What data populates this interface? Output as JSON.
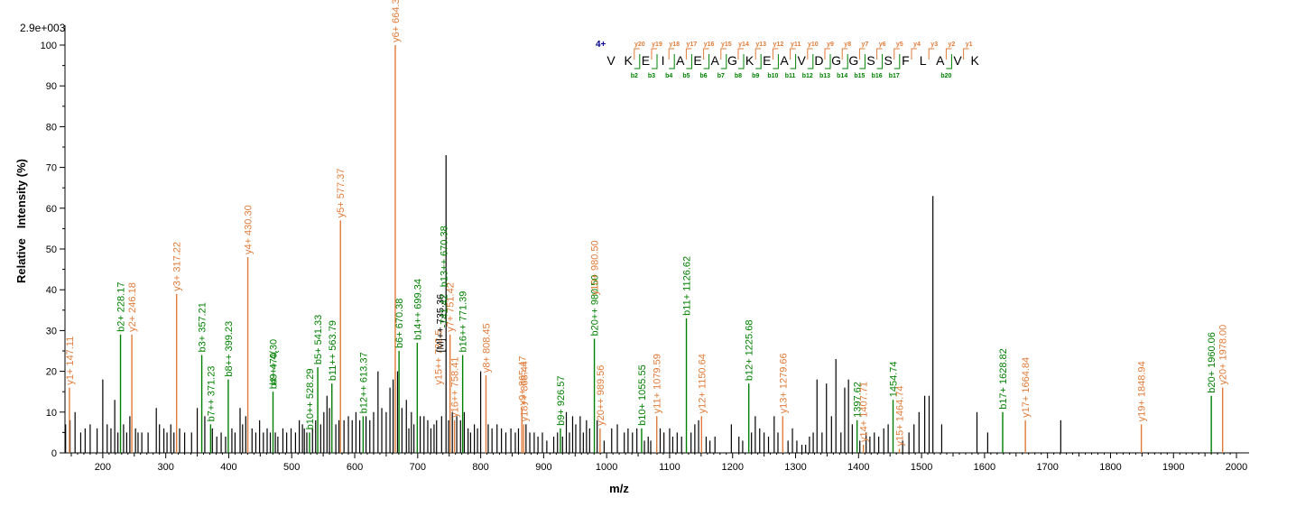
{
  "chart_data": {
    "type": "bar",
    "title": "",
    "xlabel": "m/z",
    "ylabel": "Relative   Intensity (%)",
    "scale_label": "2.9e+003",
    "xlim": [
      140,
      2020
    ],
    "ylim": [
      0,
      100
    ],
    "x_ticks": [
      "200",
      "300",
      "400",
      "500",
      "600",
      "700",
      "800",
      "900",
      "1000",
      "1100",
      "1200",
      "1300",
      "1400",
      "1500",
      "1600",
      "1700",
      "1800",
      "1900",
      "2000"
    ],
    "y_ticks": [
      "0",
      "10",
      "20",
      "30",
      "40",
      "50",
      "60",
      "70",
      "80",
      "90",
      "100"
    ],
    "colors": {
      "b_ion": "#008000",
      "y_ion": "#e07b39",
      "other": "#000000"
    },
    "sequence": {
      "charge": "4+",
      "residues": [
        "V",
        "K",
        "E",
        "I",
        "A",
        "E",
        "A",
        "G",
        "K",
        "E",
        "A",
        "V",
        "D",
        "G",
        "G",
        "S",
        "S",
        "F",
        "L",
        "A",
        "V",
        "K"
      ],
      "y_labels": [
        "y20",
        "y19",
        "y18",
        "y17",
        "y16",
        "y15",
        "y14",
        "y13",
        "y12",
        "y11",
        "y10",
        "y9",
        "y8",
        "y7",
        "y6",
        "y5",
        "y4",
        "y3",
        "y2",
        "y1"
      ],
      "b_labels": [
        "b2",
        "b3",
        "b4",
        "b5",
        "b6",
        "b7",
        "b8",
        "b9",
        "b10",
        "b11",
        "b12",
        "b13",
        "b14",
        "b15",
        "b16",
        "b17",
        "b20"
      ]
    },
    "labeled_peaks": [
      {
        "mz": 147.11,
        "intensity": 16,
        "ion": "y",
        "label": "y1+ 147.11"
      },
      {
        "mz": 228.17,
        "intensity": 29,
        "ion": "b",
        "label": "b2+ 228.17"
      },
      {
        "mz": 246.18,
        "intensity": 29,
        "ion": "y",
        "label": "y2+ 246.18"
      },
      {
        "mz": 317.22,
        "intensity": 39,
        "ion": "y",
        "label": "y3+ 317.22"
      },
      {
        "mz": 357.21,
        "intensity": 24,
        "ion": "b",
        "label": "b3+ 357.21"
      },
      {
        "mz": 371.23,
        "intensity": 7,
        "ion": "b",
        "label": "b7++ 371.23"
      },
      {
        "mz": 399.23,
        "intensity": 18,
        "ion": "b",
        "label": "b8++ 399.23"
      },
      {
        "mz": 430.3,
        "intensity": 48,
        "ion": "y",
        "label": "y4+ 430.30"
      },
      {
        "mz": 470.3,
        "intensity": 15,
        "ion": "b",
        "label": "b4+ 470.30"
      },
      {
        "mz": 528.29,
        "intensity": 5,
        "ion": "b",
        "label": "b10++ 528.29"
      },
      {
        "mz": 541.33,
        "intensity": 21,
        "ion": "b",
        "label": "b5+ 541.33"
      },
      {
        "mz": 563.79,
        "intensity": 17,
        "ion": "b",
        "label": "b11++ 563.79"
      },
      {
        "mz": 577.37,
        "intensity": 57,
        "ion": "y",
        "label": "y5+ 577.37"
      },
      {
        "mz": 613.37,
        "intensity": 9,
        "ion": "b",
        "label": "b12++ 613.37"
      },
      {
        "mz": 664.39,
        "intensity": 100,
        "ion": "y",
        "label": "y6+ 664.39"
      },
      {
        "mz": 670.38,
        "intensity": 25,
        "ion": "b",
        "label": "b6+ 670.38"
      },
      {
        "mz": 699.34,
        "intensity": 27,
        "ion": "b",
        "label": "b14++ 699.34"
      },
      {
        "mz": 751.42,
        "intensity": 29,
        "ion": "y",
        "label": "y7+ 751.42"
      },
      {
        "mz": 758.41,
        "intensity": 8,
        "ion": "y",
        "label": "y16++ 758.41"
      },
      {
        "mz": 771.39,
        "intensity": 24,
        "ion": "b",
        "label": "b16++ 771.39"
      },
      {
        "mz": 808.45,
        "intensity": 19,
        "ion": "y",
        "label": "y8+ 808.45"
      },
      {
        "mz": 865.47,
        "intensity": 11,
        "ion": "y",
        "label": "y9+ 865.47"
      },
      {
        "mz": 868.44,
        "intensity": 7,
        "ion": "y",
        "label": "y18++ 868.44"
      },
      {
        "mz": 926.57,
        "intensity": 6,
        "ion": "b",
        "label": "b9+ 926.57"
      },
      {
        "mz": 980.5,
        "intensity": 28,
        "ion": "b",
        "label": "b20++ 980.50"
      },
      {
        "mz": 989.56,
        "intensity": 6,
        "ion": "y",
        "label": "y20++ 989.56"
      },
      {
        "mz": 1055.55,
        "intensity": 6,
        "ion": "b",
        "label": "b10+ 1055.55"
      },
      {
        "mz": 1079.59,
        "intensity": 9,
        "ion": "y",
        "label": "y11+ 1079.59"
      },
      {
        "mz": 1126.62,
        "intensity": 33,
        "ion": "b",
        "label": "b11+ 1126.62"
      },
      {
        "mz": 1150.64,
        "intensity": 9,
        "ion": "y",
        "label": "y12+ 1150.64"
      },
      {
        "mz": 1225.68,
        "intensity": 17,
        "ion": "b",
        "label": "b12+ 1225.68"
      },
      {
        "mz": 1279.66,
        "intensity": 9,
        "ion": "y",
        "label": "y13+ 1279.66"
      },
      {
        "mz": 1397.62,
        "intensity": 8,
        "ion": "b",
        "label": "1397.62"
      },
      {
        "mz": 1407.71,
        "intensity": 2,
        "ion": "y",
        "label": "y14+ 1407.71"
      },
      {
        "mz": 1454.74,
        "intensity": 13,
        "ion": "b",
        "label": "1454.74"
      },
      {
        "mz": 1464.74,
        "intensity": 1,
        "ion": "y",
        "label": "y15+ 1464.74"
      },
      {
        "mz": 1628.82,
        "intensity": 10,
        "ion": "b",
        "label": "b17+ 1628.82"
      },
      {
        "mz": 1664.84,
        "intensity": 8,
        "ion": "y",
        "label": "y17+ 1664.84"
      },
      {
        "mz": 1848.94,
        "intensity": 7,
        "ion": "y",
        "label": "y19+ 1848.94"
      },
      {
        "mz": 1960.06,
        "intensity": 14,
        "ion": "b",
        "label": "b20+ 1960.06"
      },
      {
        "mz": 1978.0,
        "intensity": 16,
        "ion": "y",
        "label": "y20+ 1978.00"
      }
    ],
    "partial_labels": [
      {
        "mz": 470.3,
        "intensity": 16,
        "ion": "b",
        "text": "b9++ 4("
      },
      {
        "mz": 732.5,
        "intensity": 16,
        "ion": "y",
        "text": "y15++ 732.5"
      },
      {
        "mz": 735.36,
        "intensity": 24,
        "ion": "other",
        "text": "[M]++ 735.36"
      },
      {
        "mz": 741.42,
        "intensity": 40,
        "ion": "b",
        "text": "b13++ 670.38"
      },
      {
        "mz": 741.42,
        "intensity": 30,
        "ion": "b",
        "text": "-741.42"
      },
      {
        "mz": 980.5,
        "intensity": 38,
        "ion": "y",
        "text": "y10+ 980.50"
      }
    ],
    "other_peaks": [
      [
        141,
        7
      ],
      [
        148,
        8
      ],
      [
        156,
        10
      ],
      [
        165,
        5
      ],
      [
        172,
        6
      ],
      [
        180,
        7
      ],
      [
        191,
        6
      ],
      [
        200,
        18
      ],
      [
        207,
        7
      ],
      [
        213,
        6
      ],
      [
        219,
        13
      ],
      [
        224,
        5
      ],
      [
        233,
        7
      ],
      [
        238,
        5
      ],
      [
        243,
        9
      ],
      [
        252,
        6
      ],
      [
        256,
        5
      ],
      [
        262,
        5
      ],
      [
        272,
        5
      ],
      [
        285,
        11
      ],
      [
        290,
        7
      ],
      [
        297,
        6
      ],
      [
        302,
        5
      ],
      [
        308,
        7
      ],
      [
        313,
        5
      ],
      [
        322,
        6
      ],
      [
        330,
        5
      ],
      [
        341,
        5
      ],
      [
        350,
        11
      ],
      [
        362,
        9
      ],
      [
        374,
        6
      ],
      [
        381,
        4
      ],
      [
        388,
        5
      ],
      [
        395,
        4
      ],
      [
        405,
        6
      ],
      [
        410,
        5
      ],
      [
        418,
        11
      ],
      [
        422,
        7
      ],
      [
        427,
        9
      ],
      [
        437,
        6
      ],
      [
        443,
        5
      ],
      [
        449,
        8
      ],
      [
        455,
        5
      ],
      [
        461,
        6
      ],
      [
        466,
        5
      ],
      [
        474,
        5
      ],
      [
        478,
        4
      ],
      [
        486,
        6
      ],
      [
        492,
        5
      ],
      [
        499,
        6
      ],
      [
        506,
        5
      ],
      [
        512,
        8
      ],
      [
        517,
        7
      ],
      [
        520,
        6
      ],
      [
        524,
        5
      ],
      [
        533,
        6
      ],
      [
        538,
        8
      ],
      [
        546,
        7
      ],
      [
        551,
        10
      ],
      [
        556,
        14
      ],
      [
        560,
        11
      ],
      [
        570,
        7
      ],
      [
        575,
        8
      ],
      [
        583,
        8
      ],
      [
        590,
        9
      ],
      [
        596,
        8
      ],
      [
        602,
        10
      ],
      [
        608,
        8
      ],
      [
        618,
        9
      ],
      [
        624,
        8
      ],
      [
        630,
        10
      ],
      [
        637,
        20
      ],
      [
        643,
        11
      ],
      [
        650,
        10
      ],
      [
        656,
        16
      ],
      [
        661,
        18
      ],
      [
        668,
        20
      ],
      [
        675,
        11
      ],
      [
        682,
        13
      ],
      [
        686,
        6
      ],
      [
        690,
        10
      ],
      [
        694,
        7
      ],
      [
        704,
        9
      ],
      [
        710,
        9
      ],
      [
        716,
        8
      ],
      [
        721,
        6
      ],
      [
        726,
        7
      ],
      [
        730,
        8
      ],
      [
        738,
        9
      ],
      [
        745,
        73
      ],
      [
        749,
        8
      ],
      [
        755,
        10
      ],
      [
        762,
        9
      ],
      [
        768,
        8
      ],
      [
        774,
        10
      ],
      [
        780,
        6
      ],
      [
        784,
        5
      ],
      [
        790,
        7
      ],
      [
        795,
        6
      ],
      [
        800,
        20
      ],
      [
        812,
        7
      ],
      [
        818,
        6
      ],
      [
        826,
        7
      ],
      [
        833,
        6
      ],
      [
        840,
        5
      ],
      [
        848,
        6
      ],
      [
        855,
        5
      ],
      [
        860,
        6
      ],
      [
        872,
        7
      ],
      [
        878,
        5
      ],
      [
        885,
        5
      ],
      [
        891,
        4
      ],
      [
        898,
        5
      ],
      [
        905,
        3
      ],
      [
        916,
        4
      ],
      [
        922,
        5
      ],
      [
        930,
        4
      ],
      [
        936,
        10
      ],
      [
        941,
        5
      ],
      [
        946,
        9
      ],
      [
        951,
        7
      ],
      [
        958,
        9
      ],
      [
        963,
        5
      ],
      [
        968,
        8
      ],
      [
        973,
        6
      ],
      [
        985,
        8
      ],
      [
        996,
        3
      ],
      [
        1008,
        6
      ],
      [
        1017,
        7
      ],
      [
        1028,
        5
      ],
      [
        1034,
        6
      ],
      [
        1041,
        5
      ],
      [
        1048,
        6
      ],
      [
        1060,
        3
      ],
      [
        1066,
        4
      ],
      [
        1070,
        3
      ],
      [
        1085,
        6
      ],
      [
        1091,
        5
      ],
      [
        1100,
        6
      ],
      [
        1105,
        4
      ],
      [
        1112,
        5
      ],
      [
        1119,
        4
      ],
      [
        1134,
        5
      ],
      [
        1140,
        7
      ],
      [
        1146,
        8
      ],
      [
        1158,
        4
      ],
      [
        1164,
        3
      ],
      [
        1172,
        4
      ],
      [
        1198,
        7
      ],
      [
        1210,
        4
      ],
      [
        1216,
        3
      ],
      [
        1230,
        5
      ],
      [
        1236,
        9
      ],
      [
        1243,
        6
      ],
      [
        1250,
        5
      ],
      [
        1257,
        4
      ],
      [
        1266,
        9
      ],
      [
        1272,
        5
      ],
      [
        1288,
        3
      ],
      [
        1295,
        6
      ],
      [
        1302,
        3
      ],
      [
        1310,
        2
      ],
      [
        1316,
        2
      ],
      [
        1322,
        4
      ],
      [
        1328,
        5
      ],
      [
        1334,
        18
      ],
      [
        1342,
        5
      ],
      [
        1349,
        17
      ],
      [
        1357,
        9
      ],
      [
        1364,
        23
      ],
      [
        1372,
        5
      ],
      [
        1378,
        16
      ],
      [
        1384,
        18
      ],
      [
        1390,
        7
      ],
      [
        1402,
        3
      ],
      [
        1412,
        5
      ],
      [
        1418,
        4
      ],
      [
        1425,
        5
      ],
      [
        1432,
        4
      ],
      [
        1440,
        6
      ],
      [
        1447,
        7
      ],
      [
        1470,
        3
      ],
      [
        1480,
        5
      ],
      [
        1488,
        7
      ],
      [
        1496,
        10
      ],
      [
        1505,
        14
      ],
      [
        1512,
        14
      ],
      [
        1518,
        63
      ],
      [
        1532,
        7
      ],
      [
        1588,
        10
      ],
      [
        1605,
        5
      ],
      [
        1721,
        8
      ]
    ]
  }
}
